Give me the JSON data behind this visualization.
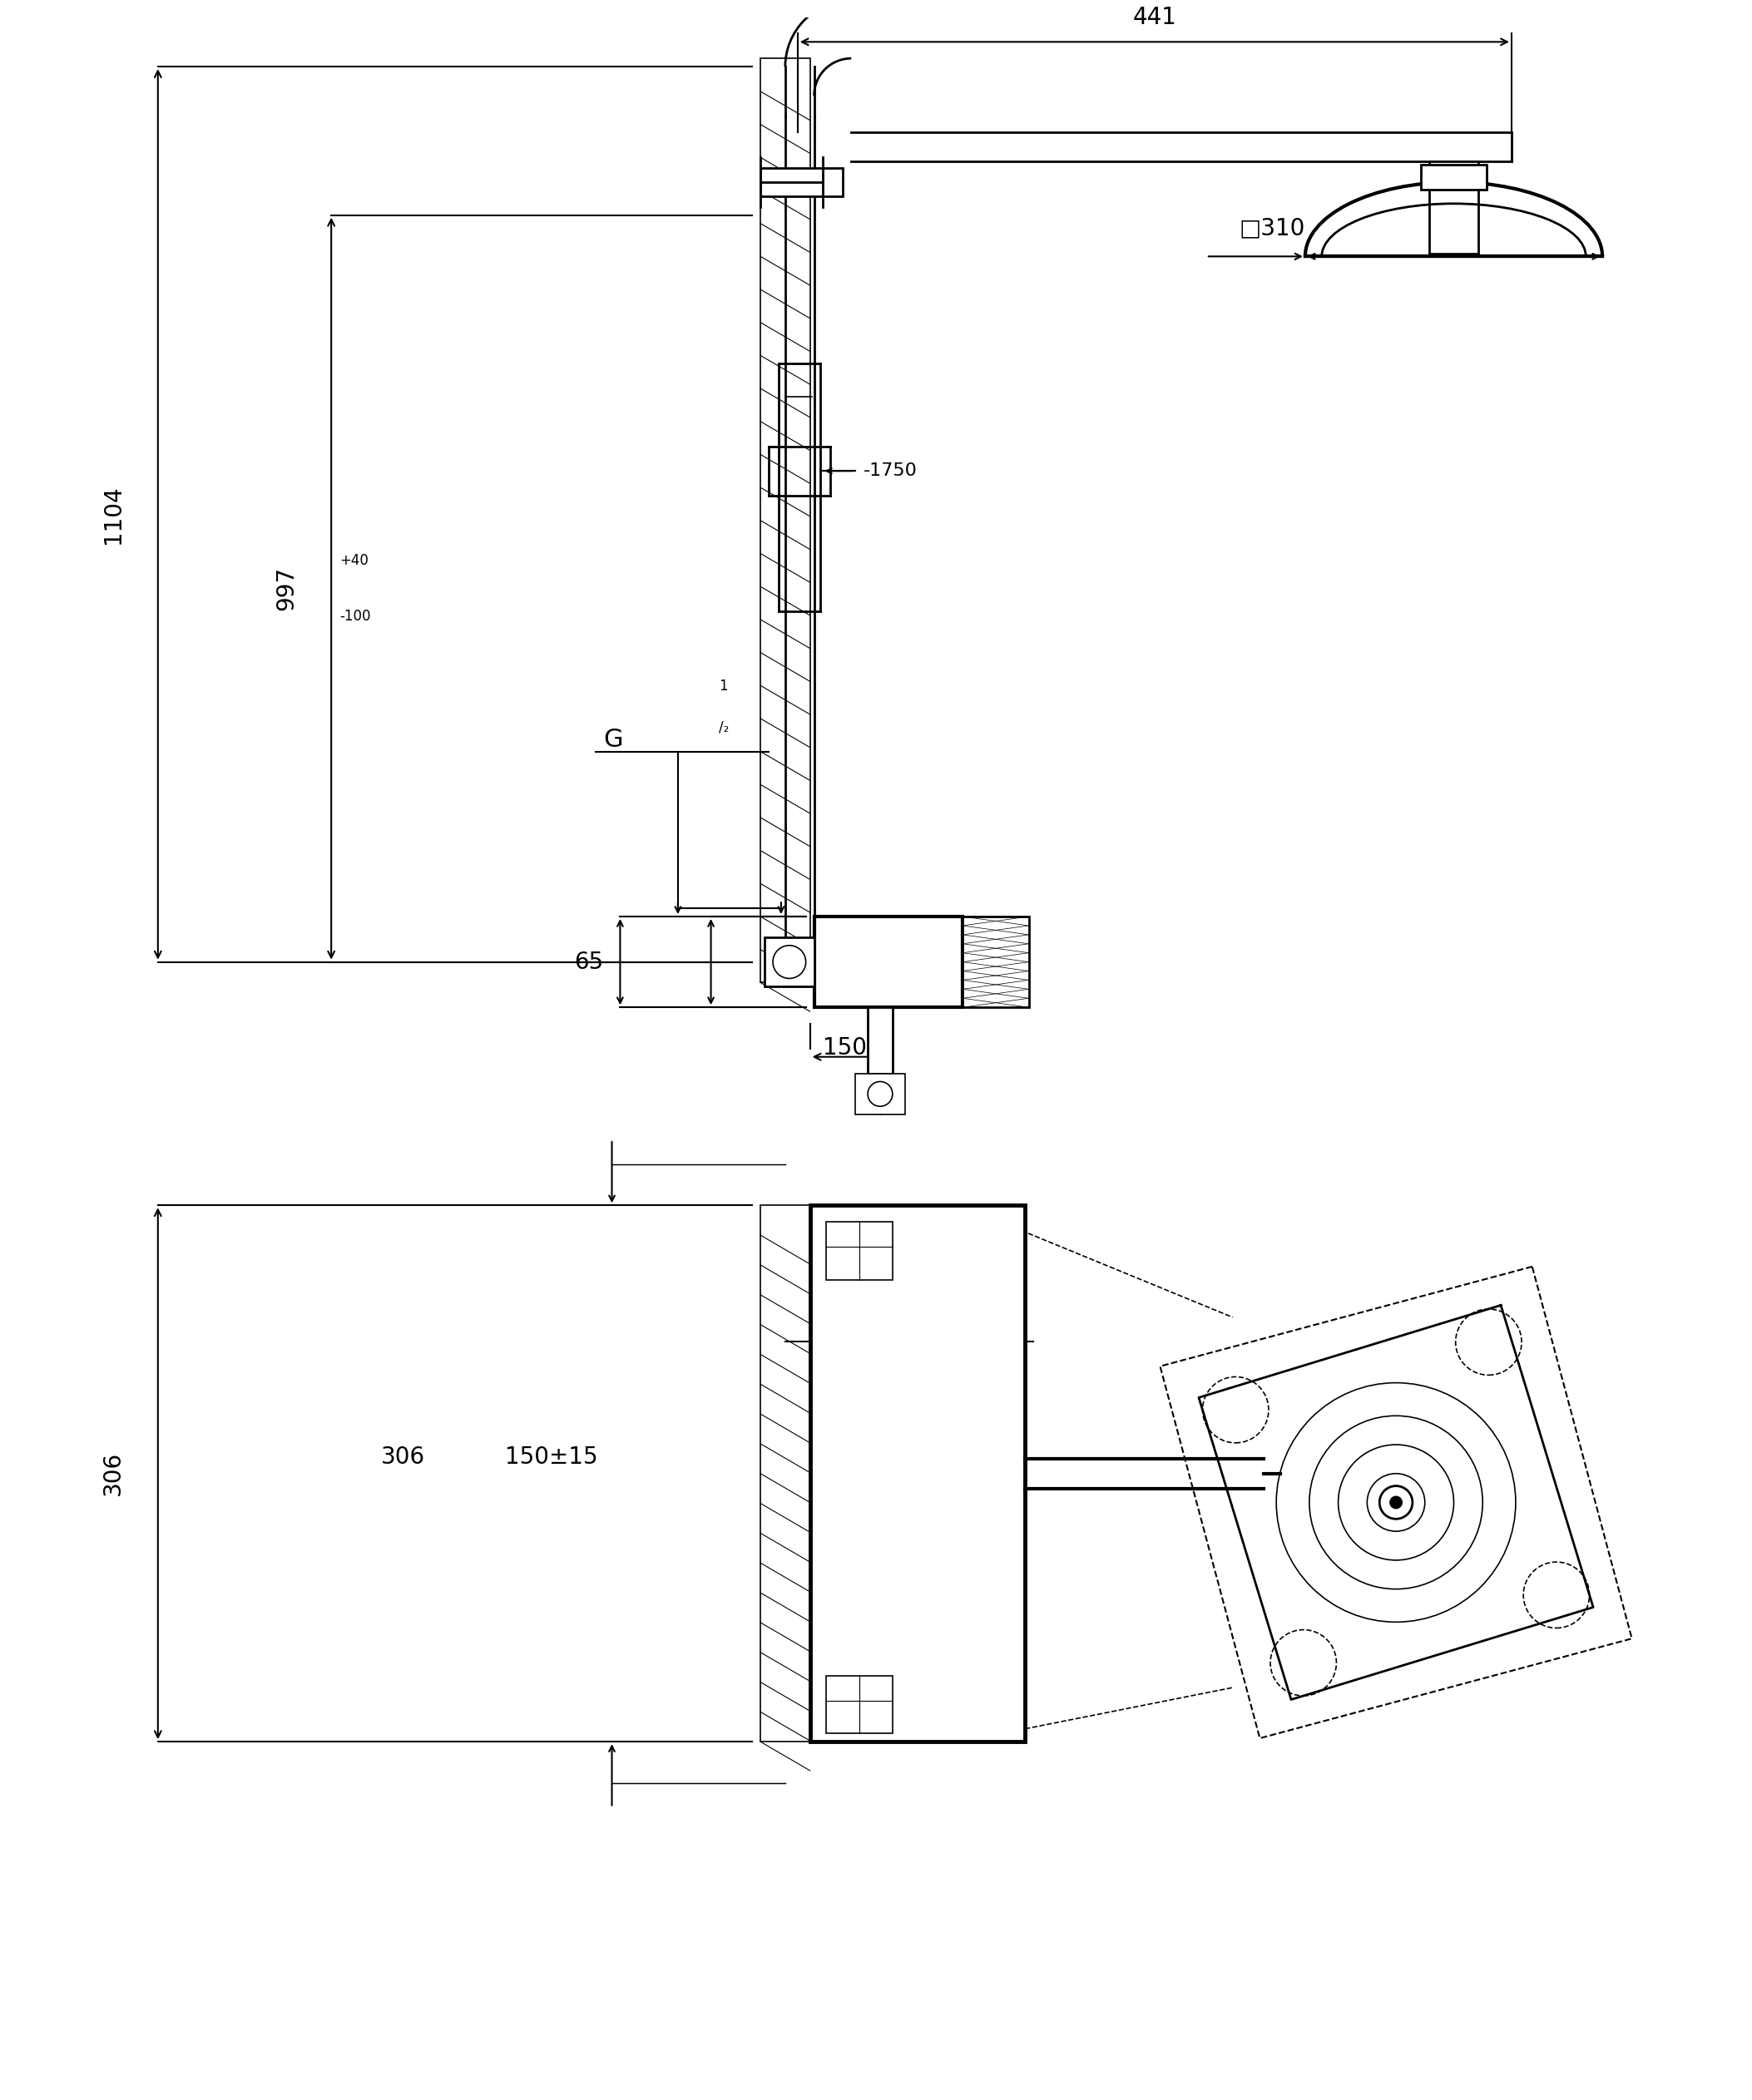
{
  "fig_w": 21.06,
  "fig_h": 25.25,
  "bg": "#ffffff",
  "lc": "#000000",
  "lw_thick": 3.0,
  "lw_med": 2.0,
  "lw_thin": 1.2,
  "lw_dim": 1.5,
  "lw_hatch": 0.8,
  "fs_large": 20,
  "fs_med": 16,
  "fs_small": 12,
  "fs_tiny": 10,
  "labels": {
    "d441": "441",
    "d1104": "1104",
    "d997": "997",
    "d997_plus": "+40",
    "d997_minus": "-100",
    "dG12": "G",
    "d65": "65",
    "d310": "□310",
    "d1750": "-1750",
    "d150": "150",
    "d306": "306",
    "d150pm": "150±15"
  }
}
